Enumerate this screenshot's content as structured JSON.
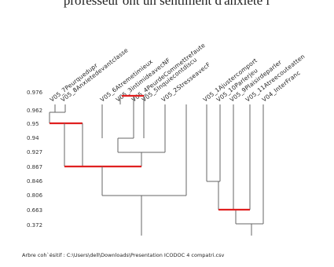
{
  "header": {
    "title": "professeur ont un sentiment d'anxiété l"
  },
  "levels": [
    "0.976",
    "0.962",
    "0.95",
    "0.94",
    "0.927",
    "0.867",
    "0.846",
    "0.806",
    "0.663",
    "0.372"
  ],
  "leaves": [
    "V05_7Peurquedupr",
    "V05_8Anxietedevantclasse",
    "V05_6Atremetimieux",
    "V05_3intimideavecNF",
    "V05_4PeurdeCommettrefaute",
    "V05_5Inquiecontdiscu",
    "V05_2StresseavecF",
    "V05_1Ajustercomport",
    "V05_10Parlerjeu",
    "V05_9Plaisirdeparler",
    "V05_11Atreecouteatten",
    "V04_InterFranc"
  ],
  "footer": "Arbre coh`ésitif : C:\\Users\\dell\\Downloads\\Presentation ICODOC 4 compatri.csv"
}
